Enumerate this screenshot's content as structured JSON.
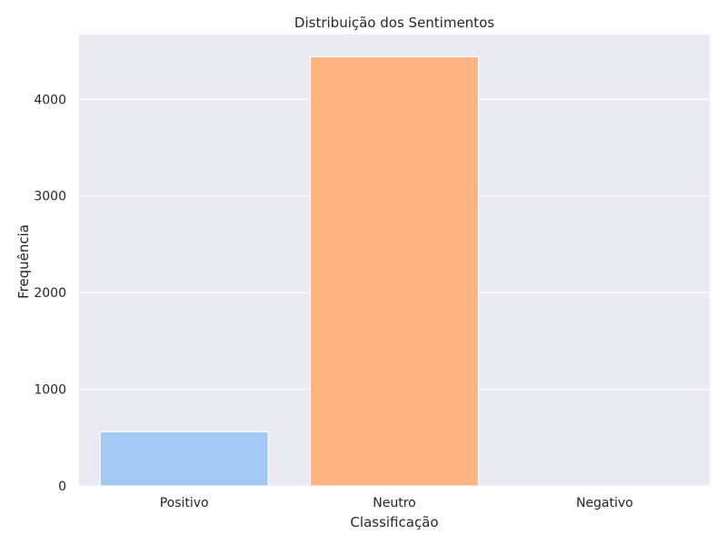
{
  "chart_data": {
    "type": "bar",
    "title": "Distribuição dos Sentimentos",
    "xlabel": "Classificação",
    "ylabel": "Frequência",
    "categories": [
      "Positivo",
      "Neutro",
      "Negativo"
    ],
    "values": [
      560,
      4440,
      0
    ],
    "colors": [
      "#a1c9f4",
      "#ffb482",
      "#8de5a1"
    ],
    "ylim": [
      0,
      4670
    ],
    "yticks": [
      0,
      1000,
      2000,
      3000,
      4000
    ],
    "ytick_labels": [
      "0",
      "1000",
      "2000",
      "3000",
      "4000"
    ],
    "grid": true,
    "background": "#eaeaf2",
    "grid_color": "#ffffff"
  }
}
